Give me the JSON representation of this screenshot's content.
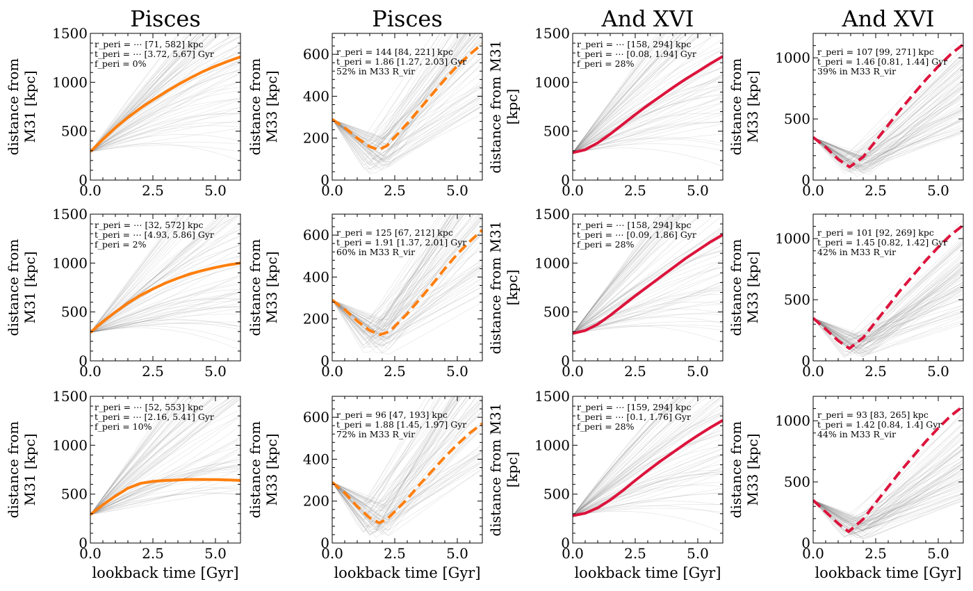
{
  "chart_data": {
    "type": "line",
    "description_units": {
      "x": "Gyr",
      "y": "kpc"
    },
    "column_titles": [
      "Pisces",
      "Pisces",
      "And XVI",
      "And XVI"
    ],
    "xlabel": "lookback time [Gyr]",
    "xlim": [
      0,
      6
    ],
    "xticks": [
      "0.0",
      "2.5",
      "5.0"
    ],
    "panels": [
      {
        "row": 0,
        "col": 0,
        "ylabel": [
          "distance from",
          "M31 [kpc]"
        ],
        "ylim": [
          0,
          1500
        ],
        "yticks": [
          "0",
          "500",
          "1000",
          "1500"
        ],
        "color": "#ff7f0e",
        "dashed": false,
        "series": {
          "x": [
            0,
            0.5,
            1,
            1.5,
            2,
            2.5,
            3,
            3.5,
            4,
            4.5,
            5,
            5.5,
            6
          ],
          "y": [
            290,
            415,
            535,
            640,
            735,
            820,
            900,
            975,
            1045,
            1110,
            1165,
            1215,
            1260
          ]
        },
        "annotation": [
          "r_peri = ⋯ [71, 582] kpc",
          "t_peri = ⋯ [3.72, 5.67] Gyr",
          "f_peri = 0%"
        ]
      },
      {
        "row": 0,
        "col": 1,
        "ylabel": [
          "distance from",
          "M33 [kpc]"
        ],
        "ylim": [
          0,
          700
        ],
        "yticks": [
          "0",
          "200",
          "400",
          "600"
        ],
        "color": "#ff7f0e",
        "dashed": true,
        "series": {
          "x": [
            0,
            0.5,
            1,
            1.5,
            1.86,
            2.2,
            2.5,
            3,
            3.5,
            4,
            4.5,
            5,
            5.5,
            6
          ],
          "y": [
            290,
            250,
            200,
            160,
            144,
            165,
            205,
            270,
            340,
            410,
            480,
            545,
            600,
            650
          ]
        },
        "annotation": [
          "r_peri = 144 [84, 221] kpc",
          "t_peri = 1.86 [1.27, 2.03] Gyr",
          "52% in M33 R_vir"
        ]
      },
      {
        "row": 0,
        "col": 2,
        "ylabel": [
          "distance from M31",
          "[kpc]"
        ],
        "ylim": [
          0,
          1500
        ],
        "yticks": [
          "0",
          "500",
          "1000",
          "1500"
        ],
        "color": "#dc143c",
        "dashed": false,
        "series": {
          "x": [
            0,
            0.5,
            1,
            1.5,
            2,
            2.5,
            3,
            3.5,
            4,
            4.5,
            5,
            5.5,
            6
          ],
          "y": [
            280,
            310,
            380,
            470,
            570,
            670,
            765,
            855,
            945,
            1030,
            1110,
            1190,
            1265
          ]
        },
        "annotation": [
          "r_peri = ⋯ [158, 294] kpc",
          "t_peri = ⋯ [0.08, 1.94] Gyr",
          "f_peri = 28%"
        ]
      },
      {
        "row": 0,
        "col": 3,
        "ylabel": [
          "distance from",
          "M33 [kpc]"
        ],
        "ylim": [
          0,
          1200
        ],
        "yticks": [
          "0",
          "500",
          "1000"
        ],
        "color": "#dc143c",
        "dashed": true,
        "series": {
          "x": [
            0,
            0.5,
            1,
            1.46,
            2,
            2.5,
            3,
            3.5,
            4,
            4.5,
            5,
            5.5,
            6
          ],
          "y": [
            350,
            270,
            170,
            107,
            190,
            320,
            450,
            580,
            700,
            820,
            930,
            1030,
            1110
          ]
        },
        "annotation": [
          "r_peri = 107 [99, 271] kpc",
          "t_peri = 1.46 [0.81, 1.44] Gyr",
          "39% in M33 R_vir"
        ]
      },
      {
        "row": 1,
        "col": 0,
        "ylabel": [
          "distance from",
          "M31 [kpc]"
        ],
        "ylim": [
          0,
          1500
        ],
        "yticks": [
          "0",
          "500",
          "1000",
          "1500"
        ],
        "color": "#ff7f0e",
        "dashed": false,
        "series": {
          "x": [
            0,
            0.5,
            1,
            1.5,
            2,
            2.5,
            3,
            3.5,
            4,
            4.5,
            5,
            5.5,
            6
          ],
          "y": [
            290,
            400,
            500,
            590,
            670,
            735,
            795,
            845,
            890,
            925,
            955,
            980,
            1000
          ]
        },
        "annotation": [
          "r_peri = ⋯ [32, 572] kpc",
          "t_peri = ⋯ [4.93, 5.86] Gyr",
          "f_peri = 2%"
        ]
      },
      {
        "row": 1,
        "col": 1,
        "ylabel": [
          "distance from",
          "M33 [kpc]"
        ],
        "ylim": [
          0,
          700
        ],
        "yticks": [
          "0",
          "200",
          "400",
          "600"
        ],
        "color": "#ff7f0e",
        "dashed": true,
        "series": {
          "x": [
            0,
            0.5,
            1,
            1.5,
            1.91,
            2.3,
            2.5,
            3,
            3.5,
            4,
            4.5,
            5,
            5.5,
            6
          ],
          "y": [
            290,
            245,
            190,
            145,
            125,
            140,
            165,
            225,
            295,
            365,
            440,
            510,
            570,
            625
          ]
        },
        "annotation": [
          "r_peri = 125 [67, 212] kpc",
          "t_peri = 1.91 [1.37, 2.01] Gyr",
          "60% in M33 R_vir"
        ]
      },
      {
        "row": 1,
        "col": 2,
        "ylabel": [
          "distance from M31",
          "[kpc]"
        ],
        "ylim": [
          0,
          1500
        ],
        "yticks": [
          "0",
          "500",
          "1000",
          "1500"
        ],
        "color": "#dc143c",
        "dashed": false,
        "series": {
          "x": [
            0,
            0.5,
            1,
            1.5,
            2,
            2.5,
            3,
            3.5,
            4,
            4.5,
            5,
            5.5,
            6
          ],
          "y": [
            280,
            310,
            375,
            465,
            565,
            665,
            760,
            855,
            950,
            1045,
            1130,
            1215,
            1290
          ]
        },
        "annotation": [
          "r_peri = ⋯ [158, 294] kpc",
          "t_peri = ⋯ [0.09, 1.86] Gyr",
          "f_peri = 28%"
        ]
      },
      {
        "row": 1,
        "col": 3,
        "ylabel": [
          "distance from",
          "M33 [kpc]"
        ],
        "ylim": [
          0,
          1200
        ],
        "yticks": [
          "0",
          "500",
          "1000"
        ],
        "color": "#dc143c",
        "dashed": true,
        "series": {
          "x": [
            0,
            0.5,
            1,
            1.45,
            2,
            2.5,
            3,
            3.5,
            4,
            4.5,
            5,
            5.5,
            6
          ],
          "y": [
            350,
            260,
            165,
            101,
            190,
            320,
            450,
            580,
            700,
            820,
            930,
            1030,
            1110
          ]
        },
        "annotation": [
          "r_peri = 101 [92, 269] kpc",
          "t_peri = 1.45 [0.82, 1.42] Gyr",
          "42% in M33 R_vir"
        ]
      },
      {
        "row": 2,
        "col": 0,
        "ylabel": [
          "distance from",
          "M31 [kpc]"
        ],
        "ylim": [
          0,
          1500
        ],
        "yticks": [
          "0",
          "500",
          "1000",
          "1500"
        ],
        "color": "#ff7f0e",
        "dashed": false,
        "series": {
          "x": [
            0,
            0.5,
            1,
            1.5,
            2,
            2.5,
            3,
            3.5,
            4,
            4.5,
            5,
            5.5,
            6
          ],
          "y": [
            290,
            390,
            480,
            560,
            610,
            630,
            640,
            645,
            650,
            650,
            648,
            645,
            640
          ]
        },
        "annotation": [
          "r_peri = ⋯ [52, 553] kpc",
          "t_peri = ⋯ [2.16, 5.41] Gyr",
          "f_peri = 10%"
        ]
      },
      {
        "row": 2,
        "col": 1,
        "ylabel": [
          "distance from",
          "M33 [kpc]"
        ],
        "ylim": [
          0,
          700
        ],
        "yticks": [
          "0",
          "200",
          "400",
          "600"
        ],
        "color": "#ff7f0e",
        "dashed": true,
        "series": {
          "x": [
            0,
            0.5,
            1,
            1.5,
            1.88,
            2.2,
            2.5,
            3,
            3.5,
            4,
            4.5,
            5,
            5.5,
            6
          ],
          "y": [
            290,
            240,
            175,
            120,
            96,
            115,
            150,
            210,
            280,
            345,
            410,
            470,
            525,
            570
          ]
        },
        "annotation": [
          "r_peri = 96 [47, 193] kpc",
          "t_peri = 1.88 [1.45, 1.97] Gyr",
          "72% in M33 R_vir"
        ]
      },
      {
        "row": 2,
        "col": 2,
        "ylabel": [
          "distance from M31",
          "[kpc]"
        ],
        "ylim": [
          0,
          1500
        ],
        "yticks": [
          "0",
          "500",
          "1000",
          "1500"
        ],
        "color": "#dc143c",
        "dashed": false,
        "series": {
          "x": [
            0,
            0.5,
            1,
            1.5,
            2,
            2.5,
            3,
            3.5,
            4,
            4.5,
            5,
            5.5,
            6
          ],
          "y": [
            280,
            305,
            360,
            440,
            535,
            640,
            740,
            835,
            925,
            1015,
            1100,
            1180,
            1255
          ]
        },
        "annotation": [
          "r_peri = ⋯ [159, 294] kpc",
          "t_peri = ⋯ [0.1, 1.76] Gyr",
          "f_peri = 28%"
        ]
      },
      {
        "row": 2,
        "col": 3,
        "ylabel": [
          "distance from",
          "M33 [kpc]"
        ],
        "ylim": [
          0,
          1200
        ],
        "yticks": [
          "0",
          "500",
          "1000"
        ],
        "color": "#dc143c",
        "dashed": true,
        "series": {
          "x": [
            0,
            0.5,
            1,
            1.42,
            2,
            2.5,
            3,
            3.5,
            4,
            4.5,
            5,
            5.5,
            6
          ],
          "y": [
            350,
            255,
            160,
            93,
            195,
            330,
            460,
            590,
            710,
            830,
            940,
            1040,
            1120
          ]
        },
        "annotation": [
          "r_peri = 93 [83, 265] kpc",
          "t_peri = 1.42 [0.84, 1.4] Gyr",
          "44% in M33 R_vir"
        ]
      }
    ]
  }
}
